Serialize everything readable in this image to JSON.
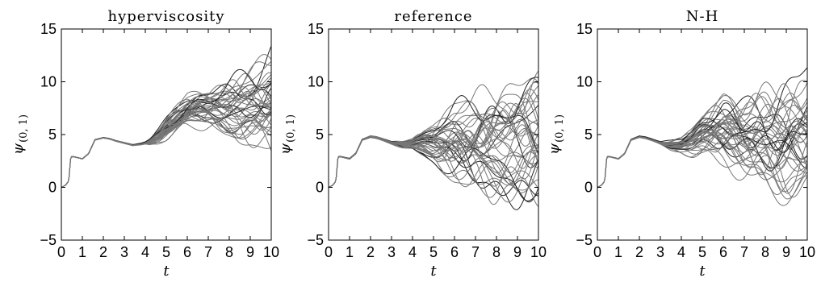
{
  "chart_data": [
    {
      "type": "line",
      "title": "hyperviscosity",
      "xlabel": "t",
      "ylabel_main": "ψ",
      "ylabel_sub": "(0, 1)",
      "xlim": [
        0,
        10
      ],
      "ylim": [
        -5,
        15
      ],
      "xticks": [
        "0",
        "1",
        "2",
        "3",
        "4",
        "5",
        "6",
        "7",
        "8",
        "9",
        "10"
      ],
      "yticks": [
        "-5",
        "0",
        "5",
        "10",
        "15"
      ],
      "grid": false,
      "series_count": 40,
      "base_curve": {
        "x": [
          0,
          0.2,
          0.35,
          0.45,
          0.6,
          1.0,
          1.3,
          1.6,
          2.0,
          2.3,
          2.6,
          3.0,
          3.4,
          3.8,
          4.2,
          4.6,
          5.0,
          5.5,
          6.0,
          6.5,
          7.0,
          7.5,
          8.0,
          8.5,
          9.0,
          9.5,
          10.0
        ],
        "y": [
          0,
          0.2,
          0.6,
          2.9,
          2.9,
          2.7,
          3.2,
          4.5,
          4.7,
          4.6,
          4.4,
          4.2,
          4.0,
          4.1,
          4.3,
          4.8,
          5.5,
          6.4,
          7.1,
          7.4,
          7.5,
          7.6,
          7.6,
          7.6,
          7.8,
          7.9,
          8.0
        ]
      },
      "spread": {
        "x": [
          0,
          3.5,
          4.0,
          5.0,
          6.0,
          7.0,
          8.0,
          9.0,
          10.0
        ],
        "half_width": [
          0,
          0.05,
          0.1,
          0.8,
          1.3,
          1.6,
          2.2,
          3.0,
          4.2
        ]
      },
      "line_colors": [
        "#777777",
        "#222222"
      ]
    },
    {
      "type": "line",
      "title": "reference",
      "xlabel": "t",
      "ylabel_main": "ψ",
      "ylabel_sub": "(0, 1)",
      "xlim": [
        0,
        10
      ],
      "ylim": [
        -5,
        15
      ],
      "xticks": [
        "0",
        "1",
        "2",
        "3",
        "4",
        "5",
        "6",
        "7",
        "8",
        "9",
        "10"
      ],
      "yticks": [
        "-5",
        "0",
        "5",
        "10",
        "15"
      ],
      "grid": false,
      "series_count": 40,
      "base_curve": {
        "x": [
          0,
          0.2,
          0.35,
          0.45,
          0.6,
          1.0,
          1.3,
          1.6,
          2.0,
          2.3,
          2.6,
          3.0,
          3.5,
          4.0,
          4.5,
          5.0,
          6.0,
          7.0,
          8.0,
          9.0,
          10.0
        ],
        "y": [
          0,
          0.2,
          0.6,
          2.9,
          2.9,
          2.7,
          3.2,
          4.5,
          4.8,
          4.7,
          4.5,
          4.2,
          4.0,
          4.1,
          4.2,
          4.1,
          4.0,
          3.8,
          3.6,
          3.5,
          3.6
        ]
      },
      "spread": {
        "x": [
          0,
          3.0,
          4.0,
          5.0,
          6.0,
          7.0,
          8.0,
          9.0,
          10.0
        ],
        "half_width": [
          0,
          0.1,
          0.4,
          1.5,
          3.0,
          4.0,
          4.6,
          5.0,
          5.2
        ]
      },
      "line_colors": [
        "#777777",
        "#222222"
      ]
    },
    {
      "type": "line",
      "title": "N-H",
      "xlabel": "t",
      "ylabel_main": "ψ",
      "ylabel_sub": "(0, 1)",
      "xlim": [
        0,
        10
      ],
      "ylim": [
        -5,
        15
      ],
      "xticks": [
        "0",
        "1",
        "2",
        "3",
        "4",
        "5",
        "6",
        "7",
        "8",
        "9",
        "10"
      ],
      "yticks": [
        "-5",
        "0",
        "5",
        "10",
        "15"
      ],
      "grid": false,
      "series_count": 40,
      "base_curve": {
        "x": [
          0,
          0.2,
          0.35,
          0.45,
          0.6,
          1.0,
          1.3,
          1.6,
          2.0,
          2.3,
          2.6,
          3.0,
          3.5,
          4.0,
          4.5,
          5.0,
          6.0,
          7.0,
          8.0,
          9.0,
          10.0
        ],
        "y": [
          0,
          0.2,
          0.6,
          2.9,
          2.9,
          2.7,
          3.2,
          4.5,
          4.8,
          4.7,
          4.5,
          4.2,
          4.0,
          4.0,
          4.3,
          4.8,
          5.3,
          4.8,
          4.5,
          4.3,
          4.5
        ]
      },
      "spread": {
        "x": [
          0,
          3.0,
          4.0,
          5.0,
          6.0,
          7.0,
          8.0,
          9.0,
          10.0
        ],
        "half_width": [
          0,
          0.1,
          0.6,
          1.8,
          2.8,
          3.4,
          4.2,
          4.8,
          5.4
        ]
      },
      "line_colors": [
        "#777777",
        "#222222"
      ]
    }
  ]
}
